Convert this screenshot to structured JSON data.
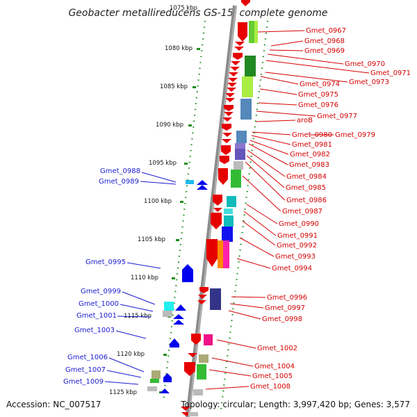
{
  "title": "Geobacter metallireducens GS-15, complete genome",
  "accession": "Accession: NC_007517",
  "summary": "Topology: circular; Length: 3,997,420 bp; Genes: 3,577",
  "scale_labels": [
    "1075 kbp",
    "1080 kbp",
    "1085 kbp",
    "1090 kbp",
    "1095 kbp",
    "1100 kbp",
    "1105 kbp",
    "1110 kbp",
    "1115 kbp",
    "1120 kbp",
    "1125 kbp"
  ],
  "right_labels": [
    "Gmet_0967",
    "Gmet_0968",
    "Gmet_0969",
    "Gmet_0970",
    "Gmet_0971",
    "Gmet_0973",
    "Gmet_0974",
    "Gmet_0975",
    "Gmet_0976",
    "Gmet_0977",
    "aroB",
    "Gmet_0980",
    "Gmet_0979",
    "Gmet_0981",
    "Gmet_0982",
    "Gmet_0983",
    "Gmet_0984",
    "Gmet_0985",
    "Gmet_0986",
    "Gmet_0987",
    "Gmet_0990",
    "Gmet_0991",
    "Gmet_0992",
    "Gmet_0993",
    "Gmet_0994",
    "Gmet_0996",
    "Gmet_0997",
    "Gmet_0998",
    "Gmet_1002",
    "Gmet_1004",
    "Gmet_1005",
    "Gmet_1008"
  ],
  "left_labels": [
    "Gmet_0988",
    "Gmet_0989",
    "Gmet_0995",
    "Gmet_0999",
    "Gmet_1000",
    "Gmet_1001",
    "Gmet_1003",
    "Gmet_1006",
    "Gmet_1007",
    "Gmet_1009"
  ],
  "colors": {
    "forward_strand": "#e60000",
    "reverse_strand": "#0000ee",
    "right_label": "#d40000",
    "left_label": "#1a1ad0",
    "backbone": "#8c8c8c",
    "tick_dots": "#1a8c1a"
  }
}
